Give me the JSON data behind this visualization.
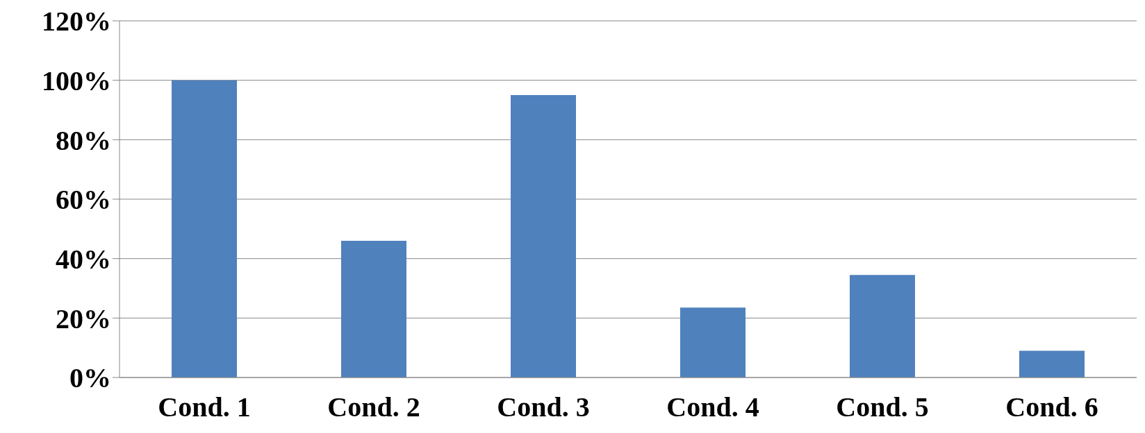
{
  "chart_data": {
    "type": "bar",
    "categories": [
      "Cond. 1",
      "Cond. 2",
      "Cond. 3",
      "Cond. 4",
      "Cond. 5",
      "Cond. 6"
    ],
    "values": [
      100,
      46,
      95,
      23.5,
      34.5,
      9
    ],
    "color": "#4f81bd",
    "ylim": [
      0,
      120
    ],
    "yticks": [
      {
        "value": 0,
        "label": "0%"
      },
      {
        "value": 20,
        "label": "20%"
      },
      {
        "value": 40,
        "label": "40%"
      },
      {
        "value": 60,
        "label": "60%"
      },
      {
        "value": 80,
        "label": "80%"
      },
      {
        "value": 100,
        "label": "100%"
      },
      {
        "value": 120,
        "label": "120%"
      }
    ],
    "grid": "y",
    "legend": false
  }
}
